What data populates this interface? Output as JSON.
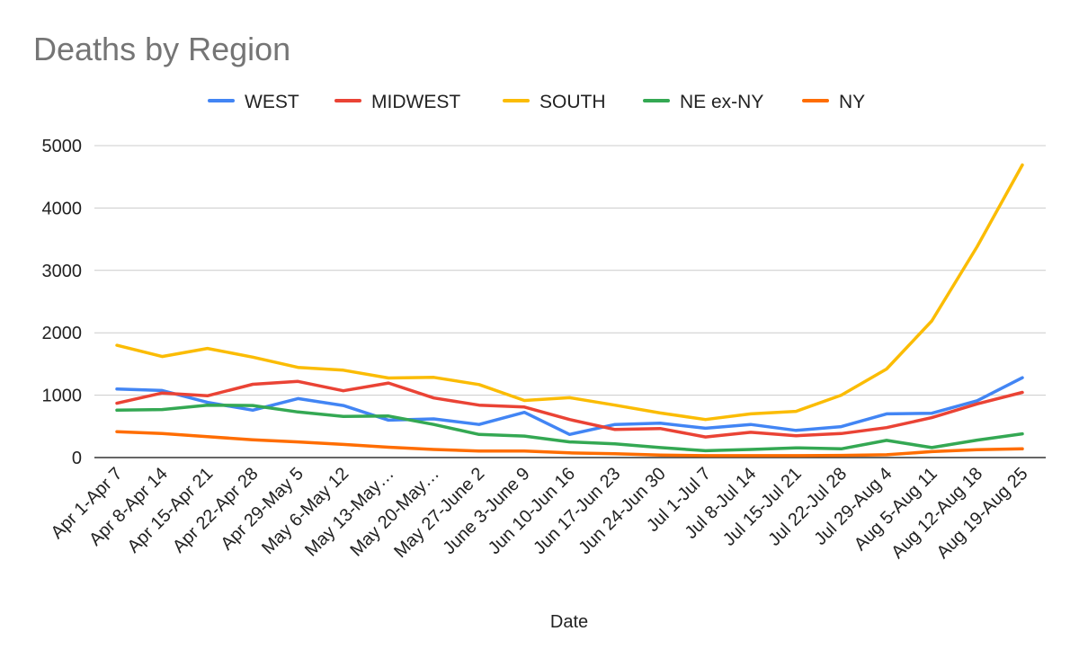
{
  "chart_data": {
    "type": "line",
    "title": "Deaths by Region",
    "xlabel": "Date",
    "ylabel": "",
    "ylim": [
      0,
      5000
    ],
    "yticks": [
      0,
      1000,
      2000,
      3000,
      4000,
      5000
    ],
    "grid": true,
    "legend_position": "top",
    "categories": [
      "Apr 1-Apr 7",
      "Apr 8-Apr 14",
      "Apr 15-Apr 21",
      "Apr 22-Apr 28",
      "Apr 29-May 5",
      "May 6-May 12",
      "May 13-May…",
      "May 20-May…",
      "May 27-June 2",
      "June 3-June 9",
      "Jun 10-Jun 16",
      "Jun 17-Jun 23",
      "Jun 24-Jun 30",
      "Jul 1-Jul 7",
      "Jul 8-Jul 14",
      "Jul 15-Jul 21",
      "Jul 22-Jul 28",
      "Jul 29-Aug 4",
      "Aug 5-Aug 11",
      "Aug 12-Aug 18",
      "Aug 19-Aug 25"
    ],
    "series": [
      {
        "name": "WEST",
        "color": "#4285F4",
        "values": [
          1100,
          1075,
          885,
          760,
          945,
          835,
          600,
          620,
          530,
          725,
          370,
          530,
          550,
          470,
          530,
          435,
          495,
          700,
          710,
          910,
          1280
        ]
      },
      {
        "name": "MIDWEST",
        "color": "#EA4335",
        "values": [
          870,
          1035,
          990,
          1175,
          1220,
          1070,
          1195,
          955,
          840,
          810,
          610,
          450,
          465,
          330,
          405,
          350,
          385,
          480,
          640,
          860,
          1045
        ]
      },
      {
        "name": "SOUTH",
        "color": "#FBBC04",
        "values": [
          1800,
          1620,
          1750,
          1610,
          1445,
          1400,
          1275,
          1285,
          1170,
          915,
          960,
          840,
          715,
          610,
          700,
          740,
          1000,
          1420,
          2190,
          3380,
          4690
        ]
      },
      {
        "name": "NE ex-NY",
        "color": "#34A853",
        "values": [
          760,
          770,
          840,
          835,
          730,
          660,
          665,
          530,
          370,
          345,
          250,
          220,
          160,
          110,
          130,
          155,
          140,
          275,
          160,
          280,
          380
        ]
      },
      {
        "name": "NY",
        "color": "#FF6D01",
        "values": [
          415,
          385,
          335,
          285,
          250,
          210,
          165,
          130,
          105,
          105,
          75,
          60,
          40,
          30,
          30,
          30,
          35,
          45,
          95,
          125,
          140
        ]
      }
    ]
  }
}
